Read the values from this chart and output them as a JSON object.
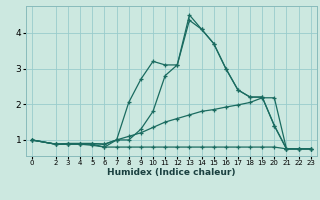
{
  "xlabel": "Humidex (Indice chaleur)",
  "background_color": "#cce8e0",
  "grid_color": "#99cccc",
  "line_color": "#1a6b60",
  "series": [
    {
      "x": [
        0,
        2,
        3,
        4,
        5,
        6,
        7,
        8,
        9,
        10,
        11,
        12,
        13,
        14,
        15,
        16,
        17,
        18,
        19,
        20,
        21,
        22,
        23
      ],
      "y": [
        1.0,
        0.88,
        0.88,
        0.88,
        0.85,
        0.8,
        0.8,
        0.8,
        0.8,
        0.8,
        0.8,
        0.8,
        0.8,
        0.8,
        0.8,
        0.8,
        0.8,
        0.8,
        0.8,
        0.8,
        0.75,
        0.75,
        0.75
      ]
    },
    {
      "x": [
        0,
        2,
        3,
        4,
        5,
        6,
        7,
        8,
        9,
        10,
        11,
        12,
        13,
        14,
        15,
        16,
        17,
        18,
        19,
        20,
        21,
        22,
        23
      ],
      "y": [
        1.0,
        0.88,
        0.9,
        0.9,
        0.9,
        0.88,
        1.0,
        1.1,
        1.2,
        1.35,
        1.5,
        1.6,
        1.7,
        1.8,
        1.85,
        1.92,
        1.98,
        2.05,
        2.18,
        2.18,
        0.75,
        0.75,
        0.75
      ]
    },
    {
      "x": [
        0,
        2,
        3,
        4,
        5,
        6,
        7,
        8,
        9,
        10,
        11,
        12,
        13,
        14,
        15,
        16,
        17,
        18,
        19,
        20,
        21,
        22,
        23
      ],
      "y": [
        1.0,
        0.88,
        0.9,
        0.9,
        0.9,
        0.88,
        1.0,
        2.05,
        2.7,
        3.2,
        3.1,
        3.1,
        4.35,
        4.1,
        3.7,
        3.0,
        2.4,
        2.2,
        2.2,
        1.4,
        0.75,
        0.75,
        0.75
      ]
    },
    {
      "x": [
        0,
        2,
        3,
        4,
        5,
        6,
        7,
        8,
        9,
        10,
        11,
        12,
        13,
        14,
        15,
        16,
        17,
        18,
        19,
        20,
        21,
        22,
        23
      ],
      "y": [
        1.0,
        0.88,
        0.88,
        0.88,
        0.88,
        0.8,
        1.0,
        1.0,
        1.3,
        1.8,
        2.8,
        3.1,
        4.5,
        4.1,
        3.7,
        3.0,
        2.4,
        2.2,
        2.2,
        1.4,
        0.75,
        0.75,
        0.75
      ]
    }
  ],
  "yticks": [
    1,
    2,
    3,
    4
  ],
  "xticks": [
    0,
    2,
    3,
    4,
    5,
    6,
    7,
    8,
    9,
    10,
    11,
    12,
    13,
    14,
    15,
    16,
    17,
    18,
    19,
    20,
    21,
    22,
    23
  ],
  "ylim": [
    0.55,
    4.75
  ],
  "xlim": [
    -0.5,
    23.5
  ]
}
